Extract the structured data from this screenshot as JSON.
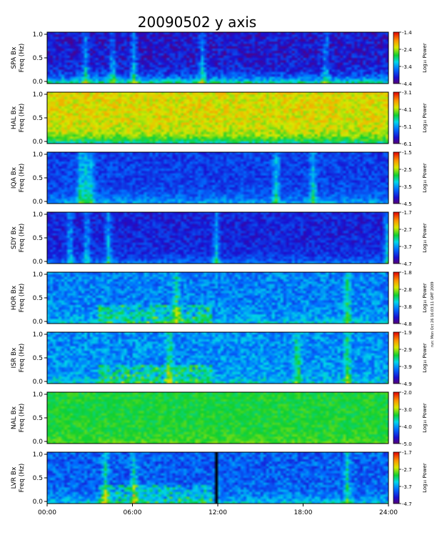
{
  "chart_data": {
    "type": "heatmap",
    "title": "20090502 y axis",
    "x_ticks": [
      "00:00",
      "06:00",
      "12:00",
      "18:00",
      "24:00"
    ],
    "xlim_hours": [
      0,
      24
    ],
    "y_ticks": [
      "0.0",
      "0.5",
      "1.0"
    ],
    "ylim_hz": [
      0,
      1.0
    ],
    "ylabel_line2": "Freq (Hz)",
    "colorbar_label": "Log₁₀ Power",
    "side_note": "run: Mon Oct 26 16:03:11 GMT 2009",
    "panels": [
      {
        "station": "SPA Bx",
        "cbar_ticks": [
          "-1.4",
          "-2.4",
          "-3.4",
          "-4.4"
        ],
        "clim": [
          -4.4,
          -1.4
        ],
        "base_level": 0.12,
        "base_noise": 0.1,
        "low_freq_band": 0.35,
        "bursts_hours": [
          2.6,
          4.5,
          6.0,
          10.8,
          19.5
        ],
        "gap_hours": []
      },
      {
        "station": "HAL Bx",
        "cbar_ticks": [
          "-3.1",
          "-4.1",
          "-5.1",
          "-6.1"
        ],
        "clim": [
          -6.1,
          -3.1
        ],
        "base_level": 0.72,
        "base_noise": 0.08,
        "low_freq_band": -0.25,
        "bursts_hours": [],
        "gap_hours": []
      },
      {
        "station": "IQA Bx",
        "cbar_ticks": [
          "-1.5",
          "-2.5",
          "-3.5",
          "-4.5"
        ],
        "clim": [
          -4.5,
          -1.5
        ],
        "base_level": 0.2,
        "base_noise": 0.08,
        "low_freq_band": 0.15,
        "bursts_hours": [
          2.2,
          2.6,
          3.0,
          16.0,
          18.6
        ],
        "gap_hours": []
      },
      {
        "station": "SDY Bx",
        "cbar_ticks": [
          "-1.7",
          "-2.7",
          "-3.7",
          "-4.7"
        ],
        "clim": [
          -4.7,
          -1.7
        ],
        "base_level": 0.15,
        "base_noise": 0.08,
        "low_freq_band": 0.12,
        "bursts_hours": [
          1.5,
          2.7,
          4.2,
          11.8,
          23.8
        ],
        "gap_hours": []
      },
      {
        "station": "HOR Bx",
        "cbar_ticks": [
          "-1.8",
          "-2.8",
          "-3.8",
          "-4.8"
        ],
        "clim": [
          -4.8,
          -1.8
        ],
        "base_level": 0.3,
        "base_noise": 0.1,
        "low_freq_band": 0.1,
        "bursts_hours": [
          9.0,
          21.0
        ],
        "gap_hours": []
      },
      {
        "station": "ISR Bx",
        "cbar_ticks": [
          "-1.9",
          "-2.9",
          "-3.9",
          "-4.9"
        ],
        "clim": [
          -4.9,
          -1.9
        ],
        "base_level": 0.32,
        "base_noise": 0.1,
        "low_freq_band": 0.1,
        "bursts_hours": [
          8.5,
          17.5,
          21.0
        ],
        "gap_hours": []
      },
      {
        "station": "NAL Bx",
        "cbar_ticks": [
          "-2.0",
          "-3.0",
          "-4.0",
          "-5.0"
        ],
        "clim": [
          -5.0,
          -2.0
        ],
        "base_level": 0.55,
        "base_noise": 0.05,
        "low_freq_band": 0.05,
        "bursts_hours": [],
        "gap_hours": []
      },
      {
        "station": "LVR Bx",
        "cbar_ticks": [
          "-1.7",
          "-2.7",
          "-3.7",
          "-4.7"
        ],
        "clim": [
          -4.7,
          -1.7
        ],
        "base_level": 0.25,
        "base_noise": 0.1,
        "low_freq_band": 0.15,
        "bursts_hours": [
          4.0,
          6.0,
          21.0
        ],
        "gap_hours": [
          11.75,
          11.95
        ]
      }
    ]
  }
}
